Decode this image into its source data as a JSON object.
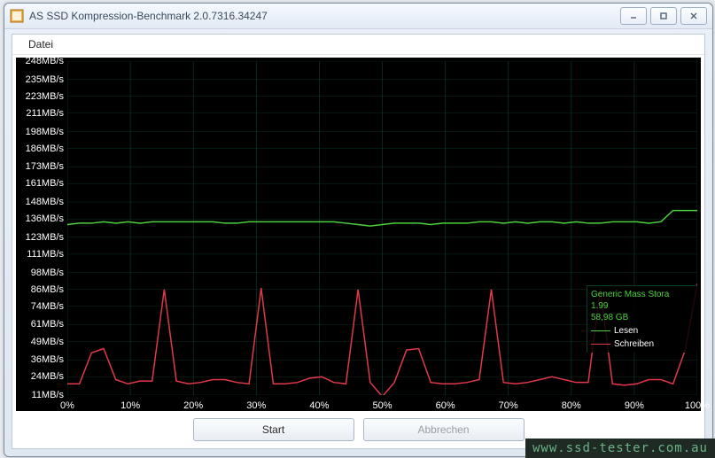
{
  "window": {
    "title": "AS SSD Kompression-Benchmark 2.0.7316.34247"
  },
  "menu": {
    "datei": "Datei"
  },
  "chart": {
    "background": "#000000",
    "grid_color": "#083a2d",
    "y_axis": {
      "min": 11,
      "max": 248,
      "ticks": [
        11,
        24,
        36,
        49,
        61,
        74,
        86,
        98,
        111,
        123,
        136,
        148,
        161,
        173,
        186,
        198,
        211,
        223,
        235,
        248
      ],
      "unit": "MB/s",
      "label_color": "#ffffff",
      "label_fontsize": 11
    },
    "x_axis": {
      "min": 0,
      "max": 100,
      "ticks": [
        0,
        10,
        20,
        30,
        40,
        50,
        60,
        70,
        80,
        90,
        100
      ],
      "unit": "%",
      "label_color": "#ffffff",
      "label_fontsize": 11
    },
    "series": {
      "read": {
        "label": "Lesen",
        "color": "#4bd13b",
        "values": [
          132,
          133,
          133,
          134,
          133,
          134,
          133,
          134,
          134,
          134,
          134,
          134,
          134,
          133,
          133,
          134,
          134,
          134,
          134,
          134,
          134,
          134,
          134,
          133,
          132,
          131,
          132,
          133,
          133,
          133,
          132,
          133,
          133,
          133,
          134,
          134,
          133,
          134,
          133,
          134,
          134,
          133,
          134,
          133,
          133,
          134,
          134,
          134,
          133,
          134,
          142,
          142,
          142
        ]
      },
      "write": {
        "label": "Schreiben",
        "color": "#e2384a",
        "values": [
          19,
          19,
          41,
          44,
          22,
          19,
          21,
          21,
          86,
          21,
          19,
          20,
          22,
          22,
          20,
          19,
          87,
          19,
          19,
          20,
          23,
          24,
          20,
          19,
          86,
          20,
          10,
          20,
          43,
          44,
          20,
          19,
          19,
          20,
          22,
          86,
          20,
          19,
          20,
          22,
          24,
          22,
          20,
          20,
          86,
          19,
          18,
          19,
          22,
          22,
          19,
          43,
          90
        ]
      }
    },
    "legend": {
      "device_line1": "Generic Mass Stora",
      "device_line2": "1.99",
      "device_line3": "58,98 GB"
    }
  },
  "buttons": {
    "start": "Start",
    "abort": "Abbrechen"
  },
  "watermark": "www.ssd-tester.com.au"
}
